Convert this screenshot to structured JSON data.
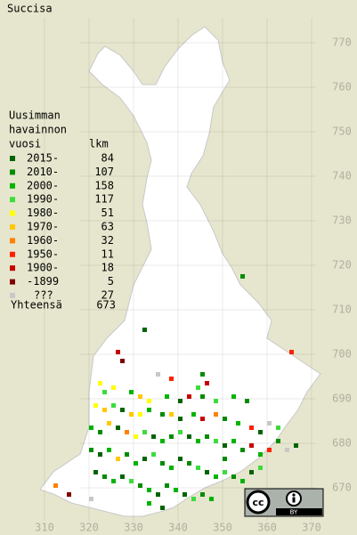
{
  "map": {
    "title": "Succisa",
    "legend_heading": [
      "Uusimman",
      "havainnon",
      "vuosi"
    ],
    "count_heading": "lkm",
    "classes": [
      {
        "label": "2015-",
        "count": 84,
        "color": "#006400"
      },
      {
        "label": "2010-",
        "count": 107,
        "color": "#008c00"
      },
      {
        "label": "2000-",
        "count": 158,
        "color": "#00b400"
      },
      {
        "label": "1990-",
        "count": 117,
        "color": "#3cdc3c"
      },
      {
        "label": "1980-",
        "count": 51,
        "color": "#ffff00"
      },
      {
        "label": "1970-",
        "count": 63,
        "color": "#ffc800"
      },
      {
        "label": "1960-",
        "count": 32,
        "color": "#ff8000"
      },
      {
        "label": "1950-",
        "count": 11,
        "color": "#ff2000"
      },
      {
        "label": "1900-",
        "count": 18,
        "color": "#c80000"
      },
      {
        "label": "-1899",
        "count": 5,
        "color": "#800000"
      },
      {
        "label": "???",
        "count": 27,
        "color": "#c8c8c8"
      }
    ],
    "total_label": "Yhteensä",
    "total": 673,
    "xlim": [
      300,
      380
    ],
    "ylim": [
      660,
      780
    ],
    "xticks": [
      310,
      320,
      330,
      340,
      350,
      360,
      370
    ],
    "yticks": [
      670,
      680,
      690,
      700,
      710,
      720,
      730,
      740,
      750,
      760,
      770
    ],
    "cells": [
      [
        354,
        717,
        1
      ],
      [
        332,
        705,
        0
      ],
      [
        365,
        700,
        7
      ],
      [
        326,
        700,
        8
      ],
      [
        327,
        698,
        9
      ],
      [
        335,
        695,
        10
      ],
      [
        338,
        694,
        7
      ],
      [
        345,
        695,
        1
      ],
      [
        346,
        693,
        8
      ],
      [
        344,
        692,
        3
      ],
      [
        322,
        693,
        4
      ],
      [
        323,
        691,
        3
      ],
      [
        325,
        692,
        4
      ],
      [
        329,
        691,
        2
      ],
      [
        331,
        690,
        5
      ],
      [
        333,
        689,
        4
      ],
      [
        337,
        690,
        2
      ],
      [
        340,
        689,
        0
      ],
      [
        342,
        690,
        8
      ],
      [
        345,
        690,
        1
      ],
      [
        348,
        689,
        3
      ],
      [
        352,
        690,
        2
      ],
      [
        355,
        689,
        1
      ],
      [
        321,
        688,
        4
      ],
      [
        323,
        687,
        5
      ],
      [
        325,
        688,
        3
      ],
      [
        327,
        687,
        0
      ],
      [
        329,
        686,
        5
      ],
      [
        331,
        686,
        4
      ],
      [
        333,
        687,
        2
      ],
      [
        336,
        686,
        1
      ],
      [
        338,
        686,
        5
      ],
      [
        340,
        685,
        0
      ],
      [
        343,
        686,
        2
      ],
      [
        345,
        685,
        8
      ],
      [
        348,
        686,
        6
      ],
      [
        350,
        685,
        1
      ],
      [
        353,
        684,
        2
      ],
      [
        356,
        683,
        7
      ],
      [
        358,
        682,
        0
      ],
      [
        360,
        684,
        10
      ],
      [
        362,
        683,
        3
      ],
      [
        320,
        683,
        2
      ],
      [
        322,
        682,
        1
      ],
      [
        324,
        684,
        5
      ],
      [
        326,
        683,
        0
      ],
      [
        328,
        682,
        6
      ],
      [
        330,
        681,
        4
      ],
      [
        332,
        682,
        3
      ],
      [
        334,
        681,
        0
      ],
      [
        336,
        680,
        2
      ],
      [
        338,
        681,
        1
      ],
      [
        340,
        682,
        3
      ],
      [
        342,
        681,
        0
      ],
      [
        344,
        680,
        2
      ],
      [
        346,
        681,
        1
      ],
      [
        348,
        680,
        3
      ],
      [
        350,
        679,
        0
      ],
      [
        352,
        680,
        2
      ],
      [
        354,
        678,
        1
      ],
      [
        356,
        679,
        8
      ],
      [
        358,
        677,
        2
      ],
      [
        360,
        678,
        7
      ],
      [
        362,
        680,
        1
      ],
      [
        364,
        678,
        10
      ],
      [
        366,
        679,
        0
      ],
      [
        320,
        678,
        1
      ],
      [
        322,
        677,
        0
      ],
      [
        324,
        678,
        2
      ],
      [
        326,
        676,
        5
      ],
      [
        328,
        677,
        1
      ],
      [
        330,
        675,
        2
      ],
      [
        332,
        676,
        0
      ],
      [
        334,
        677,
        3
      ],
      [
        336,
        675,
        1
      ],
      [
        338,
        674,
        2
      ],
      [
        340,
        676,
        0
      ],
      [
        342,
        675,
        1
      ],
      [
        344,
        674,
        3
      ],
      [
        346,
        673,
        0
      ],
      [
        348,
        672,
        2
      ],
      [
        350,
        673,
        3
      ],
      [
        352,
        672,
        1
      ],
      [
        354,
        671,
        2
      ],
      [
        356,
        673,
        0
      ],
      [
        358,
        674,
        3
      ],
      [
        321,
        673,
        0
      ],
      [
        323,
        672,
        1
      ],
      [
        325,
        671,
        2
      ],
      [
        327,
        672,
        0
      ],
      [
        329,
        671,
        3
      ],
      [
        331,
        670,
        1
      ],
      [
        333,
        669,
        2
      ],
      [
        335,
        668,
        0
      ],
      [
        337,
        670,
        1
      ],
      [
        339,
        669,
        2
      ],
      [
        341,
        668,
        0
      ],
      [
        343,
        667,
        3
      ],
      [
        345,
        668,
        1
      ],
      [
        347,
        667,
        2
      ],
      [
        312,
        670,
        6
      ],
      [
        315,
        668,
        9
      ],
      [
        320,
        667,
        10
      ],
      [
        333,
        666,
        2
      ],
      [
        336,
        665,
        0
      ],
      [
        350,
        676,
        1
      ]
    ],
    "license": {
      "cc": "cc",
      "by": "BY"
    }
  }
}
